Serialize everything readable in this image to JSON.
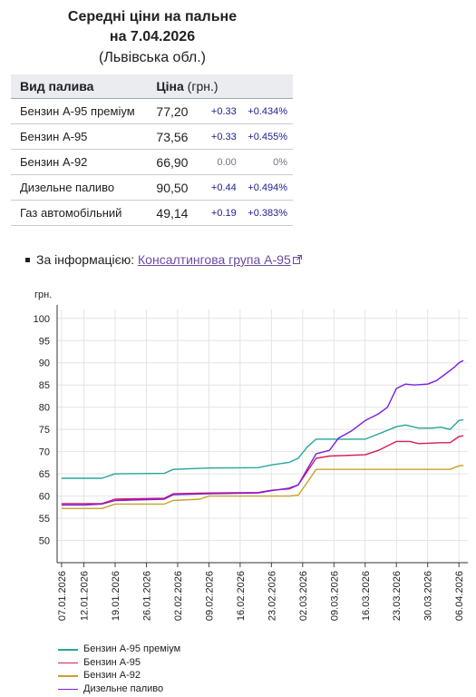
{
  "header": {
    "title_line1": "Середні ціни на пальне",
    "title_line2": "на 7.04.2026",
    "region": "(Львівська обл.)"
  },
  "table": {
    "col_fuel": "Вид палива",
    "col_price": "Ціна",
    "col_unit": "(грн.)",
    "rows": [
      {
        "name": "Бензин А-95 преміум",
        "price": "77,20",
        "abs": "+0.33",
        "pct": "+0.434%"
      },
      {
        "name": "Бензин А-95",
        "price": "73,56",
        "abs": "+0.33",
        "pct": "+0.455%"
      },
      {
        "name": "Бензин А-92",
        "price": "66,90",
        "abs": "0.00",
        "pct": "0%"
      },
      {
        "name": "Дизельне паливо",
        "price": "90,50",
        "abs": "+0.44",
        "pct": "+0.494%"
      },
      {
        "name": "Газ автомобільний",
        "price": "49,14",
        "abs": "+0.19",
        "pct": "+0.383%"
      }
    ]
  },
  "source": {
    "prefix": "За інформацією: ",
    "link_text": "Консалтингова група А-95"
  },
  "chart_data": {
    "type": "line",
    "ylabel": "грн.",
    "ylim": [
      45,
      102
    ],
    "yticks": [
      50,
      55,
      60,
      65,
      70,
      75,
      80,
      85,
      90,
      95,
      100
    ],
    "x_ticks": [
      "07.01.2026",
      "12.01.2026",
      "19.01.2026",
      "26.01.2026",
      "02.02.2026",
      "09.02.2026",
      "16.02.2026",
      "23.02.2026",
      "02.03.2026",
      "09.03.2026",
      "16.03.2026",
      "23.03.2026",
      "30.03.2026",
      "06.04.2026"
    ],
    "grid": true,
    "legend_position": "bottom-left",
    "series": [
      {
        "name": "Бензин А-95 преміум",
        "color": "#26a69a",
        "points": [
          [
            "2026-01-07",
            64.0
          ],
          [
            "2026-01-16",
            64.0
          ],
          [
            "2026-01-19",
            65.0
          ],
          [
            "2026-01-30",
            65.1
          ],
          [
            "2026-02-01",
            66.0
          ],
          [
            "2026-02-09",
            66.3
          ],
          [
            "2026-02-20",
            66.4
          ],
          [
            "2026-02-23",
            67.0
          ],
          [
            "2026-02-27",
            67.6
          ],
          [
            "2026-03-01",
            68.5
          ],
          [
            "2026-03-03",
            71.0
          ],
          [
            "2026-03-05",
            72.8
          ],
          [
            "2026-03-16",
            72.8
          ],
          [
            "2026-03-19",
            74.0
          ],
          [
            "2026-03-23",
            75.6
          ],
          [
            "2026-03-25",
            76.0
          ],
          [
            "2026-03-28",
            75.3
          ],
          [
            "2026-03-31",
            75.3
          ],
          [
            "2026-04-02",
            75.5
          ],
          [
            "2026-04-04",
            75.0
          ],
          [
            "2026-04-06",
            77.0
          ],
          [
            "2026-04-07",
            77.2
          ]
        ]
      },
      {
        "name": "Бензин А-95",
        "color": "#d81b60",
        "points": [
          [
            "2026-01-07",
            58.3
          ],
          [
            "2026-01-12",
            58.3
          ],
          [
            "2026-01-16",
            58.3
          ],
          [
            "2026-01-19",
            59.3
          ],
          [
            "2026-01-30",
            59.5
          ],
          [
            "2026-02-01",
            60.5
          ],
          [
            "2026-02-09",
            60.7
          ],
          [
            "2026-02-20",
            60.8
          ],
          [
            "2026-02-23",
            61.3
          ],
          [
            "2026-02-27",
            61.6
          ],
          [
            "2026-03-01",
            62.5
          ],
          [
            "2026-03-03",
            65.5
          ],
          [
            "2026-03-05",
            68.5
          ],
          [
            "2026-03-08",
            69.0
          ],
          [
            "2026-03-16",
            69.3
          ],
          [
            "2026-03-19",
            70.3
          ],
          [
            "2026-03-23",
            72.3
          ],
          [
            "2026-03-26",
            72.3
          ],
          [
            "2026-03-28",
            71.8
          ],
          [
            "2026-04-02",
            72.0
          ],
          [
            "2026-04-04",
            72.0
          ],
          [
            "2026-04-06",
            73.4
          ],
          [
            "2026-04-07",
            73.56
          ]
        ]
      },
      {
        "name": "Бензин А-92",
        "color": "#c9a227",
        "points": [
          [
            "2026-01-07",
            57.2
          ],
          [
            "2026-01-16",
            57.2
          ],
          [
            "2026-01-19",
            58.2
          ],
          [
            "2026-01-30",
            58.2
          ],
          [
            "2026-02-01",
            59.0
          ],
          [
            "2026-02-07",
            59.3
          ],
          [
            "2026-02-09",
            60.0
          ],
          [
            "2026-02-20",
            60.0
          ],
          [
            "2026-02-27",
            60.0
          ],
          [
            "2026-03-01",
            60.2
          ],
          [
            "2026-03-03",
            63.0
          ],
          [
            "2026-03-05",
            66.0
          ],
          [
            "2026-03-20",
            66.0
          ],
          [
            "2026-03-28",
            66.0
          ],
          [
            "2026-04-04",
            66.0
          ],
          [
            "2026-04-06",
            66.8
          ],
          [
            "2026-04-07",
            66.9
          ]
        ]
      },
      {
        "name": "Дизельне паливо",
        "color": "#7b1fe0",
        "points": [
          [
            "2026-01-07",
            58.0
          ],
          [
            "2026-01-12",
            58.0
          ],
          [
            "2026-01-16",
            58.2
          ],
          [
            "2026-01-19",
            59.0
          ],
          [
            "2026-01-30",
            59.3
          ],
          [
            "2026-02-01",
            60.3
          ],
          [
            "2026-02-09",
            60.5
          ],
          [
            "2026-02-20",
            60.7
          ],
          [
            "2026-02-23",
            61.2
          ],
          [
            "2026-02-27",
            61.8
          ],
          [
            "2026-03-01",
            62.5
          ],
          [
            "2026-03-03",
            66.0
          ],
          [
            "2026-03-05",
            69.5
          ],
          [
            "2026-03-08",
            70.3
          ],
          [
            "2026-03-10",
            73.0
          ],
          [
            "2026-03-13",
            74.7
          ],
          [
            "2026-03-16",
            77.0
          ],
          [
            "2026-03-19",
            78.5
          ],
          [
            "2026-03-21",
            80.0
          ],
          [
            "2026-03-23",
            84.2
          ],
          [
            "2026-03-25",
            85.2
          ],
          [
            "2026-03-27",
            85.0
          ],
          [
            "2026-03-30",
            85.2
          ],
          [
            "2026-04-01",
            86.0
          ],
          [
            "2026-04-03",
            87.5
          ],
          [
            "2026-04-05",
            89.0
          ],
          [
            "2026-04-06",
            90.0
          ],
          [
            "2026-04-07",
            90.5
          ]
        ]
      }
    ]
  }
}
